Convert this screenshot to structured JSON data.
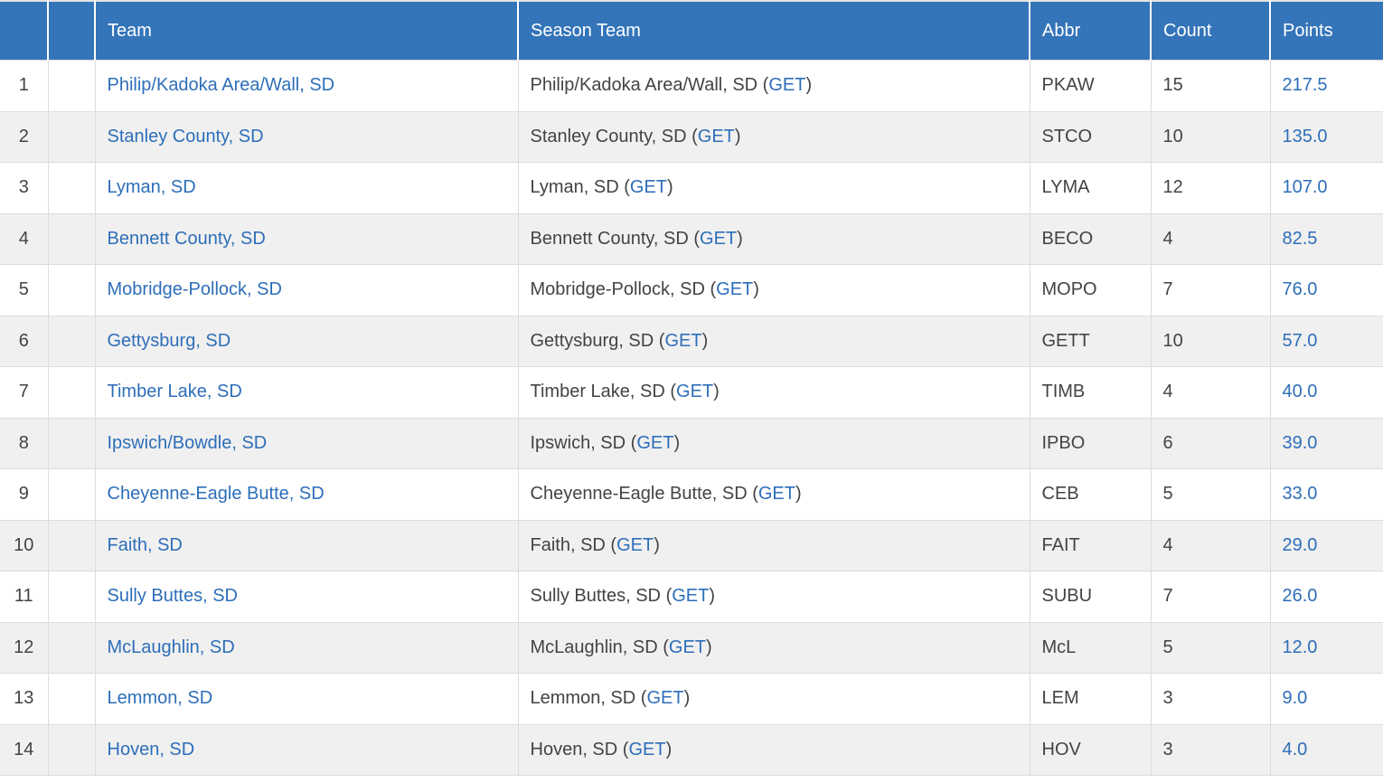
{
  "colors": {
    "header_background": "#3474b9",
    "header_text": "#ffffff",
    "link_blue": "#2d6eb9",
    "body_text": "#434343",
    "alt_row_background": "#f0f0f0",
    "grid_line": "#dcdcdc"
  },
  "table": {
    "columns": {
      "rank_label": "",
      "flag_label": "",
      "team_label": "Team",
      "season_team_label": "Season Team",
      "abbr_label": "Abbr",
      "count_label": "Count",
      "points_label": "Points"
    },
    "get_label": "GET",
    "paren_open": " (",
    "paren_close": ")",
    "rows": [
      {
        "rank": "1",
        "team": "Philip/Kadoka Area/Wall, SD",
        "season_team": "Philip/Kadoka Area/Wall, SD",
        "abbr": "PKAW",
        "count": "15",
        "points": "217.5"
      },
      {
        "rank": "2",
        "team": "Stanley County, SD",
        "season_team": "Stanley County, SD",
        "abbr": "STCO",
        "count": "10",
        "points": "135.0"
      },
      {
        "rank": "3",
        "team": "Lyman, SD",
        "season_team": "Lyman, SD",
        "abbr": "LYMA",
        "count": "12",
        "points": "107.0"
      },
      {
        "rank": "4",
        "team": "Bennett County, SD",
        "season_team": "Bennett County, SD",
        "abbr": "BECO",
        "count": "4",
        "points": "82.5"
      },
      {
        "rank": "5",
        "team": "Mobridge-Pollock, SD",
        "season_team": "Mobridge-Pollock, SD",
        "abbr": "MOPO",
        "count": "7",
        "points": "76.0"
      },
      {
        "rank": "6",
        "team": "Gettysburg, SD",
        "season_team": "Gettysburg, SD",
        "abbr": "GETT",
        "count": "10",
        "points": "57.0"
      },
      {
        "rank": "7",
        "team": "Timber Lake, SD",
        "season_team": "Timber Lake, SD",
        "abbr": "TIMB",
        "count": "4",
        "points": "40.0"
      },
      {
        "rank": "8",
        "team": "Ipswich/Bowdle, SD",
        "season_team": "Ipswich, SD",
        "abbr": "IPBO",
        "count": "6",
        "points": "39.0"
      },
      {
        "rank": "9",
        "team": "Cheyenne-Eagle Butte, SD",
        "season_team": "Cheyenne-Eagle Butte, SD",
        "abbr": "CEB",
        "count": "5",
        "points": "33.0"
      },
      {
        "rank": "10",
        "team": "Faith, SD",
        "season_team": "Faith, SD",
        "abbr": "FAIT",
        "count": "4",
        "points": "29.0"
      },
      {
        "rank": "11",
        "team": "Sully Buttes, SD",
        "season_team": "Sully Buttes, SD",
        "abbr": "SUBU",
        "count": "7",
        "points": "26.0"
      },
      {
        "rank": "12",
        "team": "McLaughlin, SD",
        "season_team": "McLaughlin, SD",
        "abbr": "McL",
        "count": "5",
        "points": "12.0"
      },
      {
        "rank": "13",
        "team": "Lemmon, SD",
        "season_team": "Lemmon, SD",
        "abbr": "LEM",
        "count": "3",
        "points": "9.0"
      },
      {
        "rank": "14",
        "team": "Hoven, SD",
        "season_team": "Hoven, SD",
        "abbr": "HOV",
        "count": "3",
        "points": "4.0"
      }
    ]
  }
}
